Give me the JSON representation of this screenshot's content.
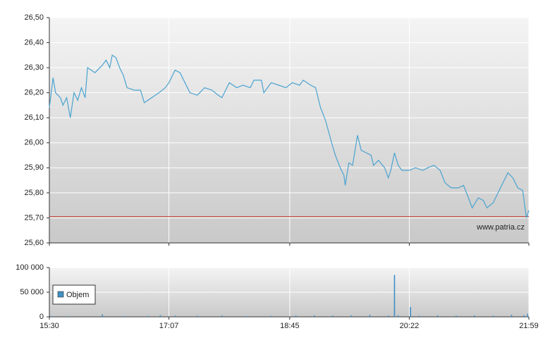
{
  "chart_data": [
    {
      "type": "line",
      "color": "#4aa3d0",
      "watermark": "www.patria.cz",
      "reference_line": 25.705,
      "reference_color": "#c0392b",
      "x": [
        "15:30",
        "15:33",
        "15:35",
        "15:39",
        "15:41",
        "15:44",
        "15:47",
        "15:50",
        "15:53",
        "15:56",
        "15:59",
        "16:01",
        "16:07",
        "16:13",
        "16:16",
        "16:19",
        "16:21",
        "16:24",
        "16:27",
        "16:30",
        "16:33",
        "16:39",
        "16:44",
        "16:47",
        "16:53",
        "16:59",
        "17:04",
        "17:07",
        "17:12",
        "17:16",
        "17:22",
        "17:24",
        "17:30",
        "17:36",
        "17:42",
        "17:47",
        "17:50",
        "17:56",
        "18:02",
        "18:07",
        "18:13",
        "18:16",
        "18:22",
        "18:24",
        "18:30",
        "18:36",
        "18:42",
        "18:47",
        "18:53",
        "18:56",
        "19:02",
        "19:06",
        "19:10",
        "19:14",
        "19:19",
        "19:22",
        "19:26",
        "19:29",
        "19:30",
        "19:33",
        "19:36",
        "19:40",
        "19:43",
        "19:47",
        "19:51",
        "19:53",
        "19:57",
        "20:02",
        "20:05",
        "20:07",
        "20:10",
        "20:13",
        "20:16",
        "20:22",
        "20:27",
        "20:33",
        "20:37",
        "20:42",
        "20:47",
        "20:51",
        "20:56",
        "21:02",
        "21:06",
        "21:10",
        "21:13",
        "21:18",
        "21:22",
        "21:25",
        "21:30",
        "21:36",
        "21:42",
        "21:46",
        "21:50",
        "21:54",
        "21:57",
        "21:59"
      ],
      "values": [
        26.14,
        26.26,
        26.2,
        26.18,
        26.15,
        26.18,
        26.1,
        26.2,
        26.17,
        26.22,
        26.18,
        26.3,
        26.28,
        26.31,
        26.33,
        26.3,
        26.35,
        26.34,
        26.3,
        26.27,
        26.22,
        26.21,
        26.21,
        26.16,
        26.18,
        26.2,
        26.22,
        26.24,
        26.29,
        26.28,
        26.22,
        26.2,
        26.19,
        26.22,
        26.21,
        26.19,
        26.18,
        26.24,
        26.22,
        26.23,
        26.22,
        26.25,
        26.25,
        26.2,
        26.24,
        26.23,
        26.22,
        26.24,
        26.23,
        26.25,
        26.23,
        26.22,
        26.14,
        26.09,
        26.0,
        25.95,
        25.9,
        25.87,
        25.83,
        25.92,
        25.91,
        26.03,
        25.97,
        25.96,
        25.95,
        25.91,
        25.93,
        25.9,
        25.86,
        25.89,
        25.96,
        25.91,
        25.89,
        25.89,
        25.9,
        25.89,
        25.9,
        25.91,
        25.89,
        25.84,
        25.82,
        25.82,
        25.83,
        25.78,
        25.74,
        25.78,
        25.77,
        25.74,
        25.76,
        25.82,
        25.88,
        25.86,
        25.82,
        25.81,
        25.7,
        25.73
      ],
      "xlim": [
        "15:30",
        "21:59"
      ],
      "ylim": [
        25.6,
        26.5
      ],
      "yticks": [
        {
          "value": 25.6,
          "label": "25,60"
        },
        {
          "value": 25.7,
          "label": "25,70"
        },
        {
          "value": 25.8,
          "label": "25,80"
        },
        {
          "value": 25.9,
          "label": "25,90"
        },
        {
          "value": 26.0,
          "label": "26,00"
        },
        {
          "value": 26.1,
          "label": "26,10"
        },
        {
          "value": 26.2,
          "label": "26,20"
        },
        {
          "value": 26.3,
          "label": "26,30"
        },
        {
          "value": 26.4,
          "label": "26,40"
        },
        {
          "value": 26.5,
          "label": "26,50"
        }
      ],
      "grid": true
    },
    {
      "type": "bar",
      "series": [
        {
          "name": "Objem",
          "color": "#3f8fc4",
          "x": [
            "15:32",
            "15:45",
            "16:13",
            "16:30",
            "16:50",
            "17:00",
            "17:12",
            "17:30",
            "17:50",
            "18:10",
            "18:30",
            "18:50",
            "19:05",
            "19:20",
            "19:35",
            "19:50",
            "20:05",
            "20:10",
            "20:13",
            "20:23",
            "20:30",
            "20:45",
            "21:00",
            "21:15",
            "21:30",
            "21:45",
            "21:55",
            "21:58"
          ],
          "values": [
            1500,
            1200,
            5000,
            1500,
            2000,
            3500,
            2500,
            2000,
            3000,
            1500,
            2000,
            2500,
            3000,
            2500,
            3000,
            4000,
            2500,
            85000,
            3000,
            20000,
            2000,
            3000,
            2500,
            3000,
            2500,
            4000,
            3000,
            6000
          ]
        }
      ],
      "xlim": [
        "15:30",
        "21:59"
      ],
      "xticks": [
        "15:30",
        "17:07",
        "18:45",
        "20:22",
        "21:59"
      ],
      "ylim": [
        0,
        100000
      ],
      "yticks": [
        0,
        {
          "value": 50000,
          "label": "50 000"
        },
        {
          "value": 100000,
          "label": "100 000"
        }
      ],
      "grid": true
    }
  ]
}
